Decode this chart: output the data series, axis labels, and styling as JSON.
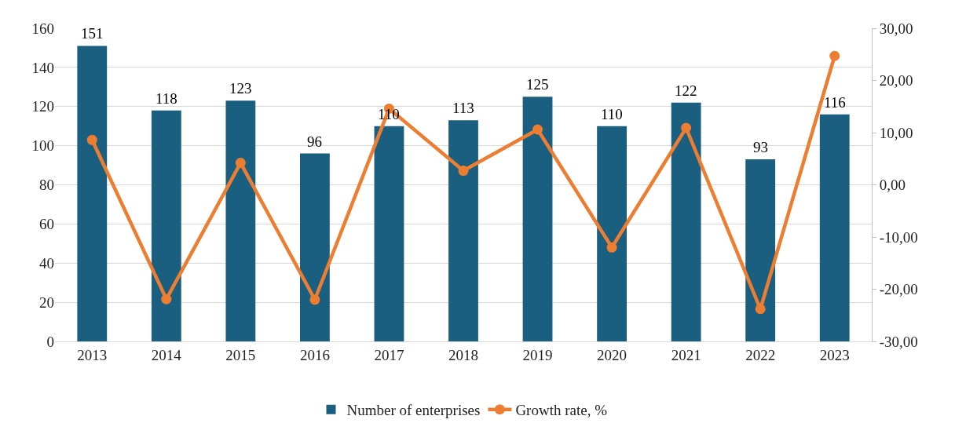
{
  "chart_data": {
    "type": "bar",
    "categories": [
      "2013",
      "2014",
      "2015",
      "2016",
      "2017",
      "2018",
      "2019",
      "2020",
      "2021",
      "2022",
      "2023"
    ],
    "series": [
      {
        "name": "Number of enterprises",
        "color": "#1a5f80",
        "data_labels": true,
        "values": [
          151,
          118,
          123,
          96,
          110,
          113,
          125,
          110,
          122,
          93,
          116
        ]
      },
      {
        "name": "Growth rate, %",
        "type": "line",
        "axis": "y2",
        "color": "#ed7d31",
        "marker": "circle",
        "values": [
          8.6,
          -21.9,
          4.2,
          -22.0,
          14.6,
          2.7,
          10.6,
          -12.0,
          10.9,
          -23.8,
          24.7
        ]
      }
    ],
    "ylim": [
      0,
      160
    ],
    "yticks": [
      0,
      20,
      40,
      60,
      80,
      100,
      120,
      140,
      160
    ],
    "y2lim": [
      -30,
      30
    ],
    "y2ticks": [
      {
        "value": -30,
        "label": "-30,00"
      },
      {
        "value": -20,
        "label": "-20,00"
      },
      {
        "value": -10,
        "label": "-10,00"
      },
      {
        "value": 0,
        "label": "0,00"
      },
      {
        "value": 10,
        "label": "10,00"
      },
      {
        "value": 20,
        "label": "20,00"
      },
      {
        "value": 30,
        "label": "30,00"
      }
    ],
    "grid": "y",
    "legend": "bottom"
  }
}
